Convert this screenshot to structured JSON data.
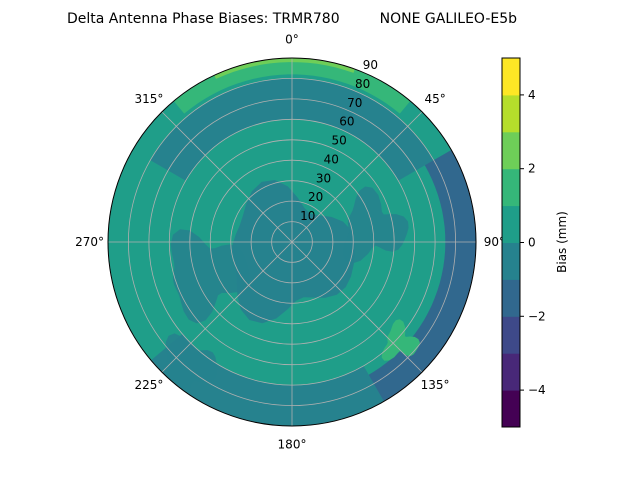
{
  "chart_data": {
    "type": "heatmap",
    "subtype": "polar-contour",
    "title": "Delta Antenna Phase Biases: TRMR780         NONE GALILEO-E5b",
    "azimuth_ticks": [
      {
        "deg": 0,
        "label": "0°"
      },
      {
        "deg": 45,
        "label": "45°"
      },
      {
        "deg": 90,
        "label": "90°"
      },
      {
        "deg": 135,
        "label": "135°"
      },
      {
        "deg": 180,
        "label": "180°"
      },
      {
        "deg": 225,
        "label": "225°"
      },
      {
        "deg": 270,
        "label": "270°"
      },
      {
        "deg": 315,
        "label": "315°"
      }
    ],
    "radial_ticks": [
      {
        "value": 10,
        "label": "10"
      },
      {
        "value": 20,
        "label": "20"
      },
      {
        "value": 30,
        "label": "30"
      },
      {
        "value": 40,
        "label": "40"
      },
      {
        "value": 50,
        "label": "50"
      },
      {
        "value": 60,
        "label": "60"
      },
      {
        "value": 70,
        "label": "70"
      },
      {
        "value": 80,
        "label": "80"
      },
      {
        "value": 90,
        "label": "90"
      }
    ],
    "radial_range": [
      0,
      90
    ],
    "grid": true,
    "colorbar": {
      "label": "Bias (mm)",
      "range": [
        -5,
        5
      ],
      "levels": [
        -5,
        -4,
        -3,
        -2,
        -1,
        0,
        1,
        2,
        3,
        4,
        5
      ],
      "colors": [
        "#440154",
        "#482878",
        "#3e4989",
        "#31688e",
        "#26828e",
        "#1f9e89",
        "#35b779",
        "#6ece58",
        "#b5de2b",
        "#fde725"
      ],
      "ticks": [
        {
          "value": 4,
          "label": "4"
        },
        {
          "value": 2,
          "label": "2"
        },
        {
          "value": 0,
          "label": "0"
        },
        {
          "value": -2,
          "label": "−2"
        },
        {
          "value": -4,
          "label": "−4"
        }
      ]
    },
    "regions": [
      {
        "name": "background",
        "level_range": [
          0,
          1
        ],
        "color": "#1f9e89"
      },
      {
        "name": "north-outer-ring",
        "level_range": [
          1,
          2
        ],
        "color": "#35b779",
        "az_range": [
          320,
          40
        ],
        "r_range": [
          82,
          90
        ]
      },
      {
        "name": "north-rim",
        "level_range": [
          2,
          3
        ],
        "color": "#6ece58",
        "az_range": [
          335,
          20
        ],
        "r_range": [
          88,
          90
        ]
      },
      {
        "name": "north-band",
        "level_range": [
          -1,
          0
        ],
        "color": "#26828e",
        "az_range": [
          300,
          60
        ],
        "r_range": [
          60,
          80
        ]
      },
      {
        "name": "east-rim",
        "level_range": [
          -2,
          -1
        ],
        "color": "#31688e",
        "az_range": [
          60,
          160
        ],
        "r_range": [
          75,
          90
        ]
      },
      {
        "name": "south-rim",
        "level_range": [
          -1,
          0
        ],
        "color": "#26828e",
        "az_range": [
          150,
          230
        ],
        "r_range": [
          70,
          90
        ]
      },
      {
        "name": "center",
        "level_range": [
          -1,
          0
        ],
        "color": "#26828e",
        "r_range": [
          0,
          30
        ]
      },
      {
        "name": "southeast-spot",
        "level_range": [
          1,
          2
        ],
        "color": "#35b779",
        "az_range": [
          125,
          140
        ],
        "r_range": [
          65,
          80
        ]
      }
    ]
  }
}
